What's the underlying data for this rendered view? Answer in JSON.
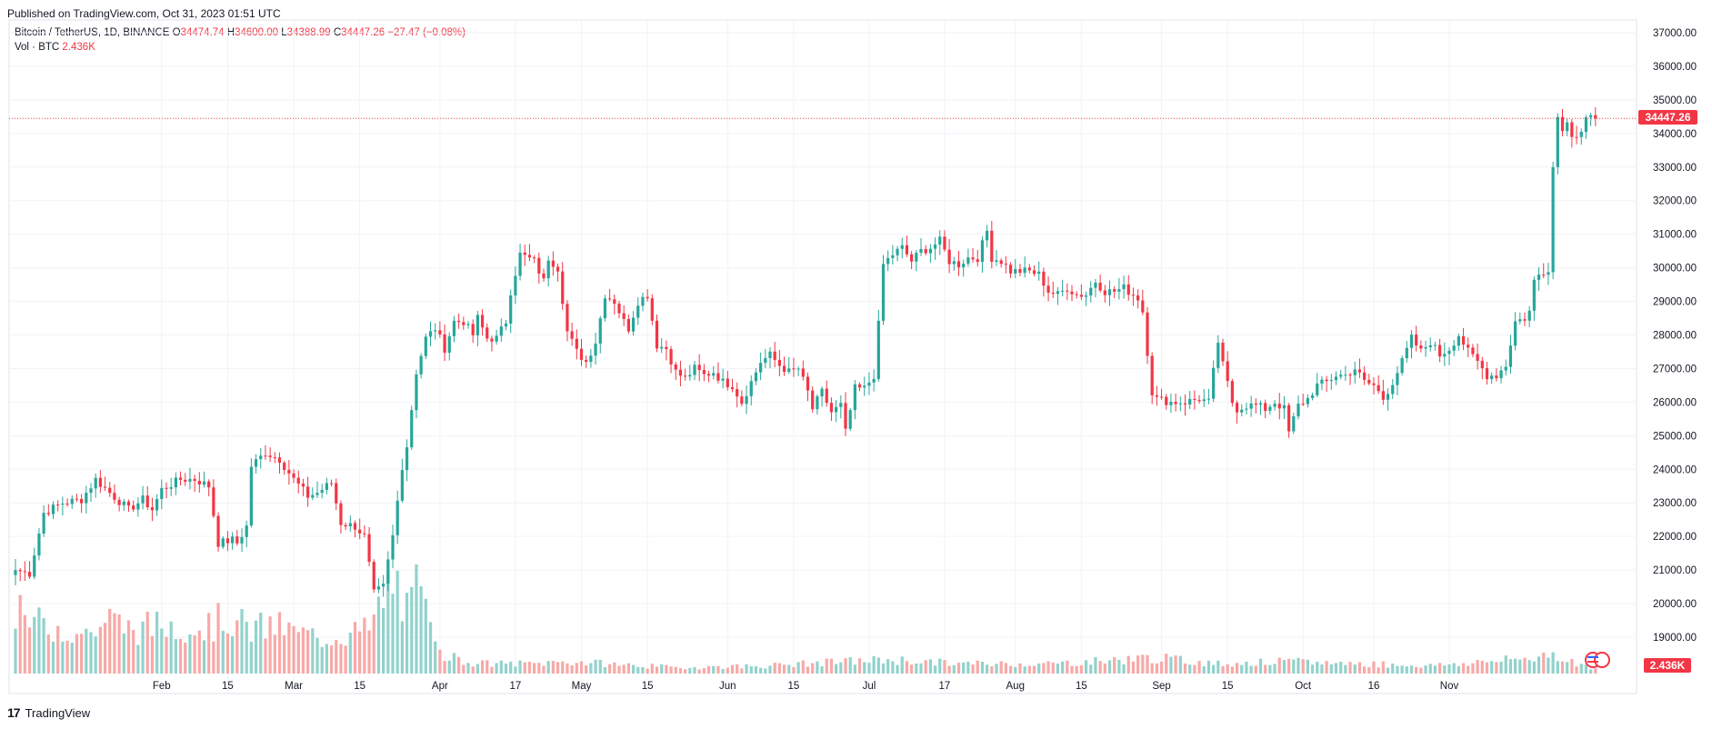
{
  "header": {
    "published": "Published on TradingView.com, Oct 31, 2023 01:51 UTC"
  },
  "legend": {
    "symbol": "Bitcoin / TetherUS, 1D, BINANCE",
    "o_label": "O",
    "o": "34474.74",
    "h_label": "H",
    "h": "34600.00",
    "l_label": "L",
    "l": "34388.99",
    "c_label": "C",
    "c": "34447.26",
    "change": "−27.47 (−0.08%)",
    "vol_label": "Vol · BTC",
    "vol": "2.436K"
  },
  "price_badge": "34447.26",
  "volume_badge": "2.436K",
  "footer": {
    "brand": "TradingView",
    "logo": "17"
  },
  "colors": {
    "up": "#26a69a",
    "down": "#f23645",
    "up_vol": "#92d2cc",
    "down_vol": "#f7a9a7",
    "grid": "#f0f3fa"
  },
  "chart_data": {
    "type": "candlestick",
    "title": "Bitcoin / TetherUS, 1D, BINANCE",
    "ylim": [
      18500,
      37200
    ],
    "yticks": [
      19000,
      20000,
      21000,
      22000,
      23000,
      24000,
      25000,
      26000,
      27000,
      28000,
      29000,
      30000,
      31000,
      32000,
      33000,
      34000,
      35000,
      36000,
      37000
    ],
    "ytick_labels": [
      "19000.00",
      "20000.00",
      "21000.00",
      "22000.00",
      "23000.00",
      "24000.00",
      "25000.00",
      "26000.00",
      "27000.00",
      "28000.00",
      "29000.00",
      "30000.00",
      "31000.00",
      "32000.00",
      "33000.00",
      "34000.00",
      "35000.00",
      "36000.00",
      "37000.00"
    ],
    "xticks": [
      {
        "label": "Feb",
        "day": 31
      },
      {
        "label": "15",
        "day": 45
      },
      {
        "label": "Mar",
        "day": 59
      },
      {
        "label": "15",
        "day": 73
      },
      {
        "label": "Apr",
        "day": 90
      },
      {
        "label": "17",
        "day": 106
      },
      {
        "label": "May",
        "day": 120
      },
      {
        "label": "15",
        "day": 134
      },
      {
        "label": "Jun",
        "day": 151
      },
      {
        "label": "15",
        "day": 165
      },
      {
        "label": "Jul",
        "day": 181
      },
      {
        "label": "17",
        "day": 197
      },
      {
        "label": "Aug",
        "day": 212
      },
      {
        "label": "15",
        "day": 226
      },
      {
        "label": "Sep",
        "day": 243
      },
      {
        "label": "15",
        "day": 257
      },
      {
        "label": "Oct",
        "day": 273
      },
      {
        "label": "16",
        "day": 288
      },
      {
        "label": "Nov",
        "day": 304
      }
    ],
    "last_price": 34447.26,
    "close_anchors": [
      [
        0,
        21000
      ],
      [
        3,
        20900
      ],
      [
        6,
        22700
      ],
      [
        10,
        23000
      ],
      [
        14,
        23100
      ],
      [
        17,
        23700
      ],
      [
        20,
        23300
      ],
      [
        24,
        22800
      ],
      [
        27,
        23100
      ],
      [
        29,
        22800
      ],
      [
        31,
        23400
      ],
      [
        35,
        23700
      ],
      [
        38,
        23700
      ],
      [
        41,
        23500
      ],
      [
        43,
        21800
      ],
      [
        46,
        21900
      ],
      [
        47,
        21800
      ],
      [
        49,
        22300
      ],
      [
        50,
        24100
      ],
      [
        53,
        24500
      ],
      [
        56,
        24300
      ],
      [
        59,
        23700
      ],
      [
        62,
        23200
      ],
      [
        64,
        23300
      ],
      [
        67,
        23600
      ],
      [
        69,
        22400
      ],
      [
        72,
        22300
      ],
      [
        74,
        22000
      ],
      [
        76,
        20300
      ],
      [
        78,
        20500
      ],
      [
        80,
        22000
      ],
      [
        82,
        24100
      ],
      [
        83,
        24700
      ],
      [
        85,
        26900
      ],
      [
        87,
        27900
      ],
      [
        89,
        28200
      ],
      [
        91,
        27600
      ],
      [
        93,
        28400
      ],
      [
        95,
        28400
      ],
      [
        97,
        28000
      ],
      [
        98,
        28500
      ],
      [
        100,
        27900
      ],
      [
        102,
        27900
      ],
      [
        104,
        28400
      ],
      [
        105,
        29300
      ],
      [
        107,
        30400
      ],
      [
        110,
        30200
      ],
      [
        112,
        29600
      ],
      [
        113,
        30300
      ],
      [
        115,
        30000
      ],
      [
        117,
        28100
      ],
      [
        119,
        27500
      ],
      [
        121,
        27200
      ],
      [
        123,
        27800
      ],
      [
        125,
        29200
      ],
      [
        127,
        29000
      ],
      [
        129,
        28400
      ],
      [
        130,
        28200
      ],
      [
        132,
        29000
      ],
      [
        134,
        29200
      ],
      [
        136,
        27700
      ],
      [
        138,
        27600
      ],
      [
        140,
        26900
      ],
      [
        142,
        26700
      ],
      [
        144,
        27000
      ],
      [
        146,
        26800
      ],
      [
        148,
        26900
      ],
      [
        150,
        26600
      ],
      [
        152,
        26500
      ],
      [
        154,
        26000
      ],
      [
        156,
        26600
      ],
      [
        158,
        27200
      ],
      [
        160,
        27400
      ],
      [
        162,
        27100
      ],
      [
        164,
        26900
      ],
      [
        166,
        27000
      ],
      [
        168,
        26300
      ],
      [
        169,
        25800
      ],
      [
        171,
        26300
      ],
      [
        173,
        25700
      ],
      [
        175,
        25900
      ],
      [
        176,
        25100
      ],
      [
        178,
        26400
      ],
      [
        180,
        26400
      ],
      [
        182,
        26800
      ],
      [
        183,
        28300
      ],
      [
        184,
        30100
      ],
      [
        186,
        30400
      ],
      [
        188,
        30600
      ],
      [
        190,
        30200
      ],
      [
        192,
        30500
      ],
      [
        194,
        30600
      ],
      [
        196,
        30800
      ],
      [
        198,
        30200
      ],
      [
        200,
        30100
      ],
      [
        202,
        30300
      ],
      [
        204,
        30300
      ],
      [
        206,
        31100
      ],
      [
        207,
        30300
      ],
      [
        209,
        30200
      ],
      [
        211,
        29900
      ],
      [
        213,
        29900
      ],
      [
        215,
        29900
      ],
      [
        217,
        29800
      ],
      [
        219,
        29300
      ],
      [
        221,
        29200
      ],
      [
        223,
        29400
      ],
      [
        225,
        29200
      ],
      [
        227,
        29200
      ],
      [
        229,
        29600
      ],
      [
        231,
        29300
      ],
      [
        233,
        29300
      ],
      [
        235,
        29400
      ],
      [
        237,
        29200
      ],
      [
        238,
        29100
      ],
      [
        239,
        28700
      ],
      [
        241,
        26300
      ],
      [
        242,
        26100
      ],
      [
        245,
        26000
      ],
      [
        248,
        26000
      ],
      [
        251,
        26100
      ],
      [
        253,
        26000
      ],
      [
        255,
        27800
      ],
      [
        256,
        27100
      ],
      [
        258,
        26000
      ],
      [
        259,
        25800
      ],
      [
        261,
        25900
      ],
      [
        263,
        25900
      ],
      [
        265,
        25800
      ],
      [
        267,
        26000
      ],
      [
        269,
        25800
      ],
      [
        270,
        25100
      ],
      [
        272,
        25900
      ],
      [
        274,
        26100
      ],
      [
        276,
        26500
      ],
      [
        278,
        26600
      ],
      [
        280,
        26800
      ],
      [
        282,
        26800
      ],
      [
        284,
        27000
      ],
      [
        286,
        26600
      ],
      [
        288,
        26500
      ],
      [
        290,
        26100
      ],
      [
        292,
        26600
      ],
      [
        294,
        27200
      ],
      [
        296,
        27900
      ],
      [
        298,
        27500
      ],
      [
        300,
        27800
      ],
      [
        302,
        27400
      ],
      [
        304,
        27600
      ],
      [
        306,
        28000
      ],
      [
        308,
        27500
      ],
      [
        310,
        27200
      ],
      [
        312,
        26800
      ],
      [
        314,
        26800
      ],
      [
        316,
        27100
      ],
      [
        318,
        28400
      ],
      [
        320,
        28500
      ],
      [
        321,
        28700
      ],
      [
        322,
        29600
      ],
      [
        323,
        29800
      ],
      [
        324,
        29900
      ],
      [
        325,
        30000
      ],
      [
        326,
        33000
      ],
      [
        327,
        34500
      ],
      [
        328,
        34200
      ],
      [
        329,
        34300
      ],
      [
        330,
        34000
      ],
      [
        331,
        34000
      ],
      [
        332,
        34100
      ],
      [
        333,
        34500
      ],
      [
        334,
        34500
      ],
      [
        335,
        34447
      ]
    ],
    "volume_spikes": [
      [
        0,
        30
      ],
      [
        5,
        25
      ],
      [
        10,
        23
      ],
      [
        15,
        20
      ],
      [
        20,
        27
      ],
      [
        25,
        22
      ],
      [
        30,
        24
      ],
      [
        35,
        25
      ],
      [
        40,
        23
      ],
      [
        45,
        28
      ],
      [
        50,
        22
      ],
      [
        55,
        24
      ],
      [
        60,
        20
      ],
      [
        65,
        18
      ],
      [
        70,
        20
      ],
      [
        75,
        22
      ],
      [
        79,
        42
      ],
      [
        81,
        45
      ],
      [
        83,
        30
      ],
      [
        85,
        42
      ],
      [
        87,
        30
      ],
      [
        89,
        23
      ],
      [
        91,
        10
      ],
      [
        95,
        6
      ],
      [
        100,
        5
      ],
      [
        110,
        5
      ],
      [
        117,
        6
      ],
      [
        125,
        5
      ],
      [
        140,
        3
      ],
      [
        160,
        4
      ],
      [
        175,
        6
      ],
      [
        185,
        7
      ],
      [
        200,
        5
      ],
      [
        220,
        5
      ],
      [
        241,
        8
      ],
      [
        255,
        5
      ],
      [
        270,
        6
      ],
      [
        300,
        4
      ],
      [
        318,
        7
      ],
      [
        326,
        10
      ],
      [
        327,
        9
      ],
      [
        335,
        2
      ]
    ]
  }
}
